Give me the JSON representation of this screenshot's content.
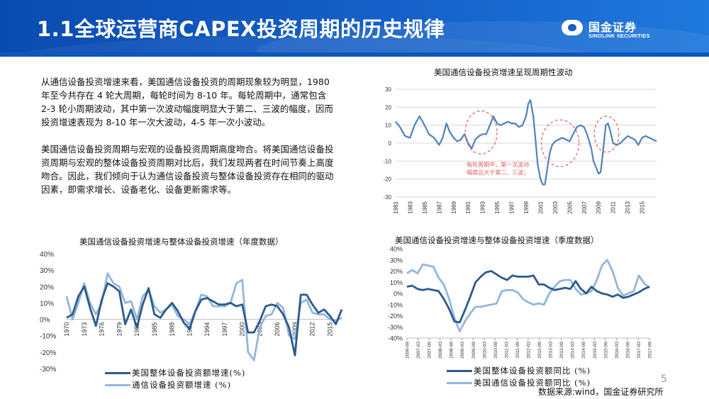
{
  "slide": {
    "title": "1.1全球运营商CAPEX投资周期的历史规律",
    "logo_cn": "国金证券",
    "logo_en": "SINOLINK SECURITIES",
    "page_number": "5",
    "source": "数据来源:wind，国金证券研究所",
    "paragraphs": [
      "从通信设备投资增速来看，美国通信设备投资的周期现象较为明显，1980 年至今共存在 4 轮大周期，每轮时间为 8-10 年。每轮周期中，通常包含 2-3 轮小周期波动，其中第一次波动幅度明显大于第二、三波的幅度，因而投资增速表现为 8-10 年一次大波动，4-5 年一次小波动。",
      "美国通信设备投资周期与宏观的设备投资周期高度吻合。将美国通信设备投资周期与宏观的整体设备投资周期对比后，我们发现两者在时间节奏上高度吻合。因此，我们倾向于认为通信设备投资与整体设备投资存在相同的驱动因素，即需求增长、设备老化、设备更新需求等。"
    ],
    "colors": {
      "header": "#1560c8",
      "dark_series": "#2d5a8e",
      "light_series": "#93b6dc",
      "annotation": "#e06060"
    }
  },
  "chart_data": [
    {
      "type": "line",
      "title": "美国通信设备投资增速呈现周期性波动",
      "ylim": [
        -30,
        30
      ],
      "yticks": [
        -30,
        -20,
        -10,
        0,
        10,
        20,
        30
      ],
      "xlim": [
        1981,
        2017
      ],
      "xticks": [
        1981,
        1983,
        1985,
        1987,
        1989,
        1991,
        1993,
        1995,
        1997,
        1999,
        2001,
        2003,
        2005,
        2007,
        2009,
        2011,
        2013,
        2015
      ],
      "grid": true,
      "annotation": [
        "每轮周期中，第一次波动",
        "幅度远大于第二、三波；"
      ],
      "circles": [
        {
          "x": 1992.8,
          "y": 6,
          "rx": 2.2,
          "ry": 12
        },
        {
          "x": 2003.7,
          "y": 0,
          "rx": 2.6,
          "ry": 13
        },
        {
          "x": 2010.1,
          "y": 5,
          "rx": 1.7,
          "ry": 10
        }
      ],
      "series": [
        {
          "x": [
            1981,
            1981.6,
            1982.3,
            1983,
            1983.6,
            1984.3,
            1985,
            1985.6,
            1986.3,
            1987,
            1987.5,
            1988,
            1988.5,
            1989,
            1989.5,
            1990,
            1990.5,
            1991,
            1991.5,
            1992,
            1992.5,
            1993,
            1993.5,
            1994,
            1994.5,
            1995,
            1995.5,
            1996,
            1996.5,
            1997,
            1997.5,
            1998,
            1998.5,
            1999,
            1999.3,
            1999.6,
            2000,
            2000.3,
            2000.6,
            2001,
            2001.3,
            2001.6,
            2002,
            2002.3,
            2002.6,
            2003,
            2003.5,
            2004,
            2004.5,
            2005,
            2005.5,
            2006,
            2006.5,
            2007,
            2007.5,
            2008,
            2008.3,
            2008.6,
            2009,
            2009.3,
            2009.6,
            2010,
            2010.3,
            2010.6,
            2011,
            2011.5,
            2012,
            2012.5,
            2013,
            2013.5,
            2014,
            2014.5,
            2015,
            2015.5,
            2016,
            2016.5,
            2017
          ],
          "y": [
            12,
            9,
            4,
            3,
            10,
            15,
            10,
            5,
            3,
            -1,
            3,
            11,
            6,
            3,
            1,
            2,
            5,
            0,
            -3,
            2,
            4,
            5,
            5,
            10,
            15,
            11,
            10,
            11,
            12,
            11,
            11,
            9,
            10,
            15,
            22,
            24,
            15,
            2,
            -12,
            -20,
            -23,
            -23,
            -12,
            -5,
            -1,
            1,
            2,
            3,
            2,
            1,
            5,
            9,
            10,
            9,
            4,
            -3,
            -10,
            -13,
            -17,
            -16,
            -5,
            10,
            11,
            7,
            0,
            -1,
            0,
            2,
            4,
            3,
            2,
            -1,
            3,
            4,
            3,
            2,
            1
          ]
        }
      ]
    },
    {
      "type": "line",
      "title": "美国通信设备投资增速与整体设备投资增速（年度数据）",
      "ylim": [
        -30,
        40
      ],
      "ytick_labels": [
        "40%",
        "30%",
        "20%",
        "10%",
        "0%",
        "-10%",
        "-20%",
        "-30%"
      ],
      "xticks": [
        1970,
        1973,
        1976,
        1979,
        1982,
        1985,
        1988,
        1991,
        1994,
        1997,
        2000,
        2003,
        2006,
        2009,
        2012,
        2015
      ],
      "grid": false,
      "series": [
        {
          "name": "美国整体设备投资额增速(%)",
          "x": [
            1970,
            1971,
            1972,
            1973,
            1974,
            1975,
            1976,
            1977,
            1978,
            1979,
            1980,
            1981,
            1982,
            1983,
            1984,
            1985,
            1986,
            1987,
            1988,
            1989,
            1990,
            1991,
            1992,
            1993,
            1994,
            1995,
            1996,
            1997,
            1998,
            1999,
            2000,
            2001,
            2002,
            2003,
            2004,
            2005,
            2006,
            2007,
            2008,
            2009,
            2010,
            2011,
            2012,
            2013,
            2014,
            2015,
            2016,
            2017
          ],
          "y": [
            1,
            3,
            14,
            20,
            7,
            -4,
            12,
            22,
            20,
            17,
            -3,
            6,
            -5,
            9,
            19,
            3,
            1,
            6,
            10,
            5,
            -2,
            -6,
            5,
            12,
            13,
            11,
            9,
            9,
            10,
            8,
            9,
            -8,
            -8,
            -1,
            8,
            9,
            8,
            3,
            -5,
            -22,
            15,
            15,
            9,
            4,
            6,
            2,
            -3,
            6
          ]
        },
        {
          "name": "通信设备投资额增速 (%)",
          "x": [
            1970,
            1971,
            1972,
            1973,
            1974,
            1975,
            1976,
            1977,
            1978,
            1979,
            1980,
            1981,
            1982,
            1983,
            1984,
            1985,
            1986,
            1987,
            1988,
            1989,
            1990,
            1991,
            1992,
            1993,
            1994,
            1995,
            1996,
            1997,
            1998,
            1999,
            2000,
            2001,
            2002,
            2003,
            2004,
            2005,
            2006,
            2007,
            2008,
            2009,
            2010,
            2011,
            2012,
            2013,
            2014,
            2015,
            2016,
            2017
          ],
          "y": [
            14,
            0,
            10,
            22,
            10,
            3,
            10,
            28,
            22,
            20,
            10,
            11,
            0,
            14,
            18,
            8,
            4,
            6,
            9,
            2,
            0,
            -3,
            5,
            15,
            14,
            8,
            8,
            8,
            10,
            22,
            24,
            -20,
            -25,
            -5,
            2,
            3,
            10,
            7,
            -10,
            -12,
            10,
            12,
            4,
            3,
            3,
            0,
            -1,
            1
          ]
        }
      ]
    },
    {
      "type": "line",
      "title": "美国通信设备投资增速与整体设备投资增速（季度数据）",
      "ylim": [
        -40,
        40
      ],
      "ytick_labels": [
        "40%",
        "30%",
        "20%",
        "10%",
        "0%",
        "-10%",
        "-20%",
        "-30%",
        "-40%"
      ],
      "xticks": [
        "2006-09",
        "2007-03",
        "2007-09",
        "2008-03",
        "2008-09",
        "2009-03",
        "2009-09",
        "2010-03",
        "2010-09",
        "2011-03",
        "2011-09",
        "2012-03",
        "2012-09",
        "2013-03",
        "2013-09",
        "2014-03",
        "2014-09",
        "2015-03",
        "2015-09",
        "2016-03",
        "2016-09",
        "2017-03",
        "2017-09"
      ],
      "grid": false,
      "series": [
        {
          "name": "美国整体设备投资额同比 (%)",
          "y": [
            6,
            7,
            4,
            3,
            4,
            3,
            2,
            -5,
            -14,
            -25,
            -26,
            -15,
            -3,
            10,
            15,
            19,
            20,
            17,
            14,
            12,
            16,
            15,
            15,
            15,
            16,
            8,
            8,
            5,
            3,
            4,
            5,
            4,
            11,
            4,
            0,
            6,
            2,
            0,
            -1,
            -3,
            -1,
            -4,
            -3,
            -1,
            1,
            4,
            6
          ]
        },
        {
          "name": "美国通信设备投资额同比 (%)",
          "y": [
            18,
            21,
            18,
            26,
            25,
            24,
            14,
            8,
            -5,
            -22,
            -34,
            -25,
            -18,
            -12,
            -12,
            -11,
            -10,
            -9,
            2,
            3,
            3,
            1,
            -5,
            -8,
            -10,
            -9,
            -10,
            0,
            6,
            11,
            12,
            12,
            4,
            -1,
            0,
            2,
            12,
            25,
            30,
            20,
            5,
            -2,
            0,
            2,
            16,
            9,
            5
          ]
        }
      ]
    }
  ]
}
